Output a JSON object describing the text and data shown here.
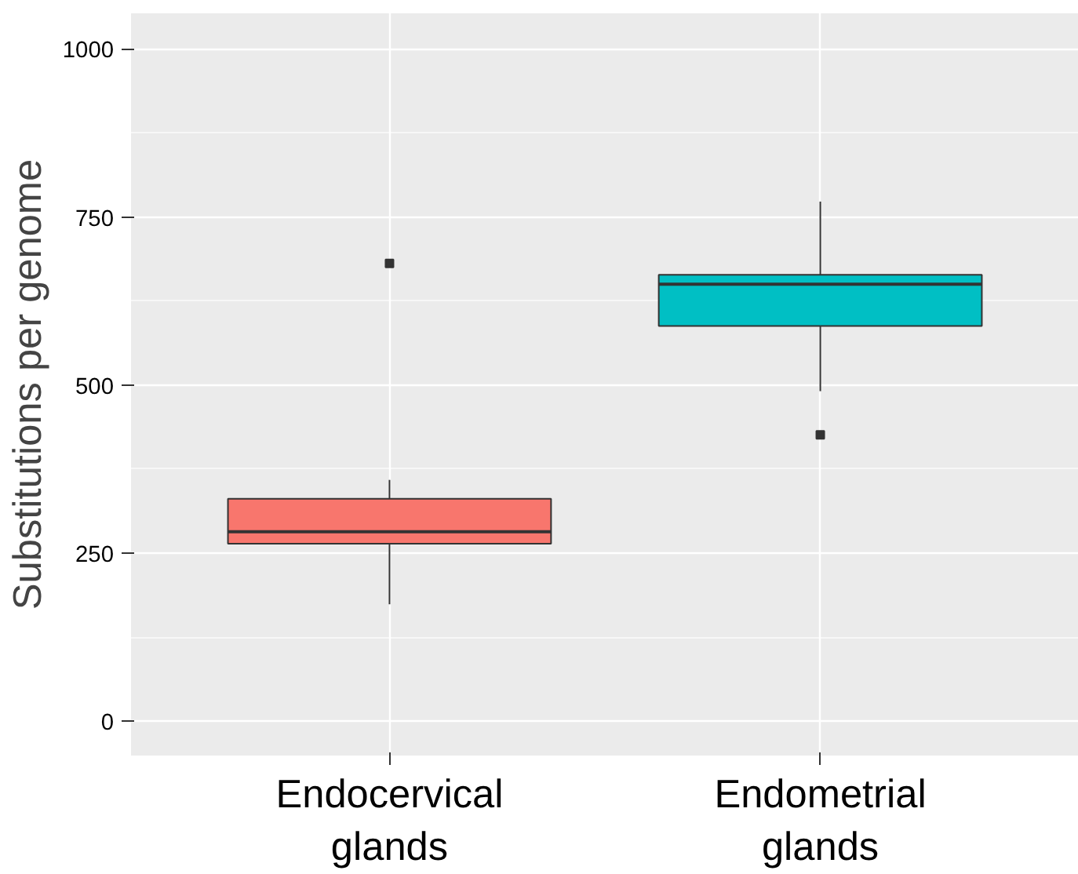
{
  "chart_data": {
    "type": "box",
    "ylabel": "Substitutions per genome",
    "categories": [
      "Endocervical\nglands",
      "Endometrial\nglands"
    ],
    "colors": [
      "#f8766d",
      "#00bfc4"
    ],
    "boxes": [
      {
        "low": 174,
        "q1": 264,
        "median": 282,
        "q3": 331,
        "high": 359,
        "outliers": [
          681
        ]
      },
      {
        "low": 491,
        "q1": 588,
        "median": 650,
        "q3": 664,
        "high": 773,
        "outliers": [
          426
        ]
      }
    ],
    "ylim": [
      -51,
      1053
    ],
    "yticks": [
      0,
      250,
      500,
      750,
      1000
    ],
    "grid": true
  }
}
